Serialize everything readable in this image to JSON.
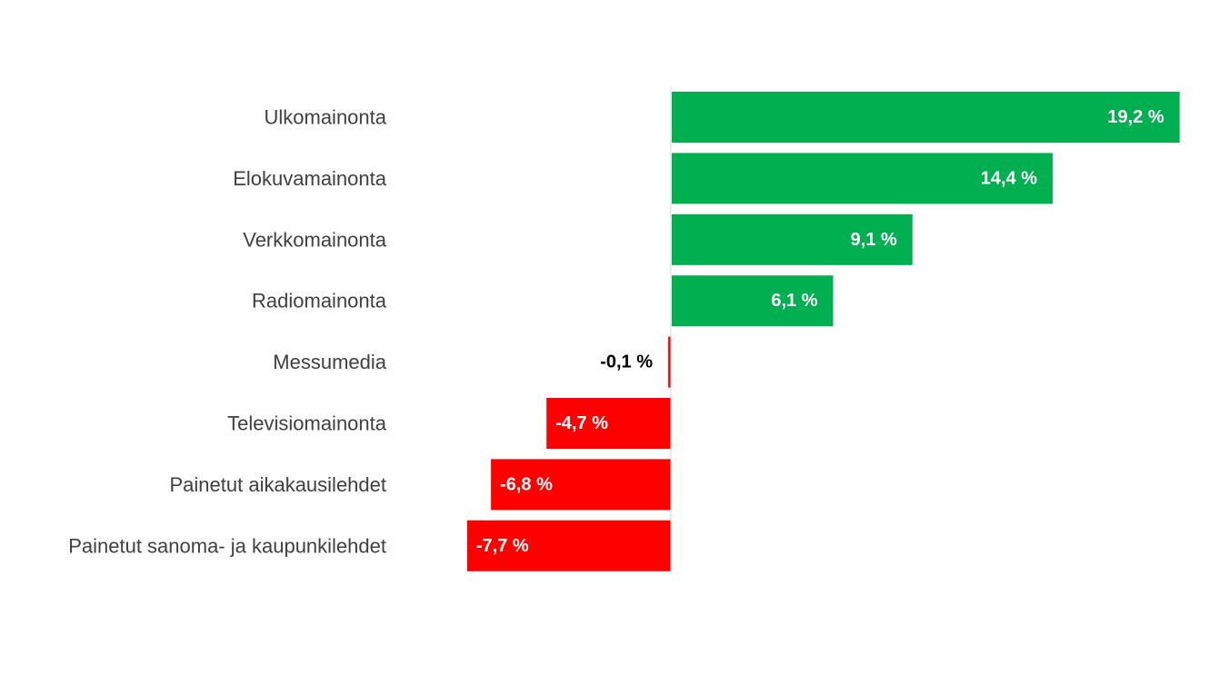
{
  "chart_data": {
    "type": "bar",
    "orientation": "horizontal",
    "title": "",
    "xlabel": "",
    "ylabel": "",
    "categories": [
      "Ulkomainonta",
      "Elokuvamainonta",
      "Verkkomainonta",
      "Radiomainonta",
      "Messumedia",
      "Televisiomainonta",
      "Painetut aikakausilehdet",
      "Painetut sanoma- ja kaupunkilehdet"
    ],
    "values": [
      19.2,
      14.4,
      9.1,
      6.1,
      -0.1,
      -4.7,
      -6.8,
      -7.7
    ],
    "data_labels": [
      "19,2 %",
      "14,4 %",
      "9,1 %",
      "6,1 %",
      "-0,1 %",
      "-4,7 %",
      "-6,8 %",
      "-7,7 %"
    ],
    "xlim": [
      -7.7,
      19.2
    ],
    "grid": false,
    "legend": "none",
    "colors": {
      "positive": "#00b050",
      "negative": "#ff0000",
      "axis": "#d9d9d9"
    }
  }
}
